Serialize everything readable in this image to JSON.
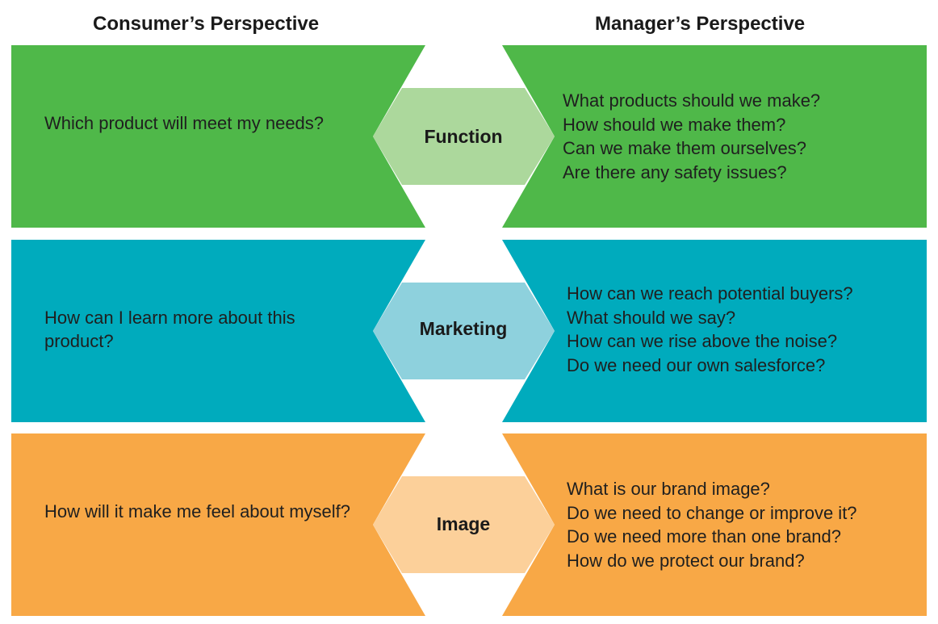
{
  "headers": {
    "consumer": "Consumer’s Perspective",
    "manager": "Manager’s Perspective"
  },
  "rows": [
    {
      "label": "Function",
      "consumer_text": "Which product will meet my needs?",
      "manager_questions": [
        "What products should we make?",
        "How should we make them?",
        "Can we make them ourselves?",
        "Are there any safety issues?"
      ],
      "color": "#4fb849",
      "arrow_color": "#acd89c"
    },
    {
      "label": "Marketing",
      "consumer_text": "How can I learn more about this product?",
      "manager_questions": [
        "How can we reach potential buyers?",
        "What should we say?",
        "How can we rise above the noise?",
        "Do we need our own salesforce?"
      ],
      "color": "#00abbd",
      "arrow_color": "#8ed1dd"
    },
    {
      "label": "Image",
      "consumer_text": "How will it make me feel about myself?",
      "manager_questions": [
        "What is our brand image?",
        "Do we need to change or improve it?",
        "Do we need more than one brand?",
        "How do we protect our brand?"
      ],
      "color": "#f8a846",
      "arrow_color": "#fcd09a"
    }
  ]
}
